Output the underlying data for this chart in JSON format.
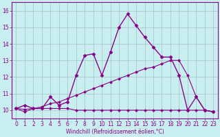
{
  "xlabel": "Windchill (Refroidissement éolien,°C)",
  "background_color": "#c8eef0",
  "line_color": "#880088",
  "grid_color": "#a0c0c8",
  "xlim": [
    -0.5,
    23.5
  ],
  "ylim": [
    9.5,
    16.5
  ],
  "yticks": [
    10,
    11,
    12,
    13,
    14,
    15,
    16
  ],
  "xticks": [
    0,
    1,
    2,
    3,
    4,
    5,
    6,
    7,
    8,
    9,
    10,
    11,
    12,
    13,
    14,
    15,
    16,
    17,
    18,
    19,
    20,
    21,
    22,
    23
  ],
  "lines": [
    {
      "x": [
        0,
        1,
        2,
        3,
        4,
        5,
        6,
        7,
        8,
        9,
        10,
        11,
        12,
        13,
        14,
        15,
        16,
        17,
        18,
        19,
        20,
        21,
        22,
        23
      ],
      "y": [
        10.1,
        10.3,
        10.1,
        10.1,
        10.8,
        10.3,
        10.5,
        12.1,
        13.3,
        13.4,
        12.1,
        13.5,
        15.0,
        15.8,
        15.1,
        14.4,
        13.8,
        13.2,
        13.2,
        12.1,
        10.0,
        10.8,
        10.0,
        9.9
      ],
      "marker": "D",
      "markersize": 2.5,
      "linewidth": 1.0
    },
    {
      "x": [
        0,
        1,
        2,
        3,
        4,
        5,
        6,
        7,
        8,
        9,
        10,
        11,
        12,
        13,
        14,
        15,
        16,
        17,
        18,
        19,
        20,
        21,
        22,
        23
      ],
      "y": [
        10.1,
        9.9,
        10.1,
        10.1,
        10.1,
        10.1,
        10.1,
        10.0,
        10.0,
        10.0,
        10.0,
        10.0,
        10.0,
        10.0,
        10.0,
        10.0,
        10.0,
        10.0,
        10.0,
        10.0,
        10.0,
        10.0,
        10.0,
        9.9
      ],
      "marker": "D",
      "markersize": 2.0,
      "linewidth": 0.8
    },
    {
      "x": [
        0,
        1,
        2,
        3,
        4,
        5,
        6,
        7,
        8,
        9,
        10,
        11,
        12,
        13,
        14,
        15,
        16,
        17,
        18,
        19,
        20,
        21,
        22,
        23
      ],
      "y": [
        10.1,
        10.05,
        10.1,
        10.2,
        10.4,
        10.5,
        10.7,
        10.9,
        11.1,
        11.3,
        11.5,
        11.7,
        11.9,
        12.1,
        12.3,
        12.5,
        12.6,
        12.8,
        13.0,
        13.0,
        12.1,
        10.8,
        10.0,
        9.9
      ],
      "marker": "D",
      "markersize": 2.0,
      "linewidth": 0.8
    }
  ]
}
